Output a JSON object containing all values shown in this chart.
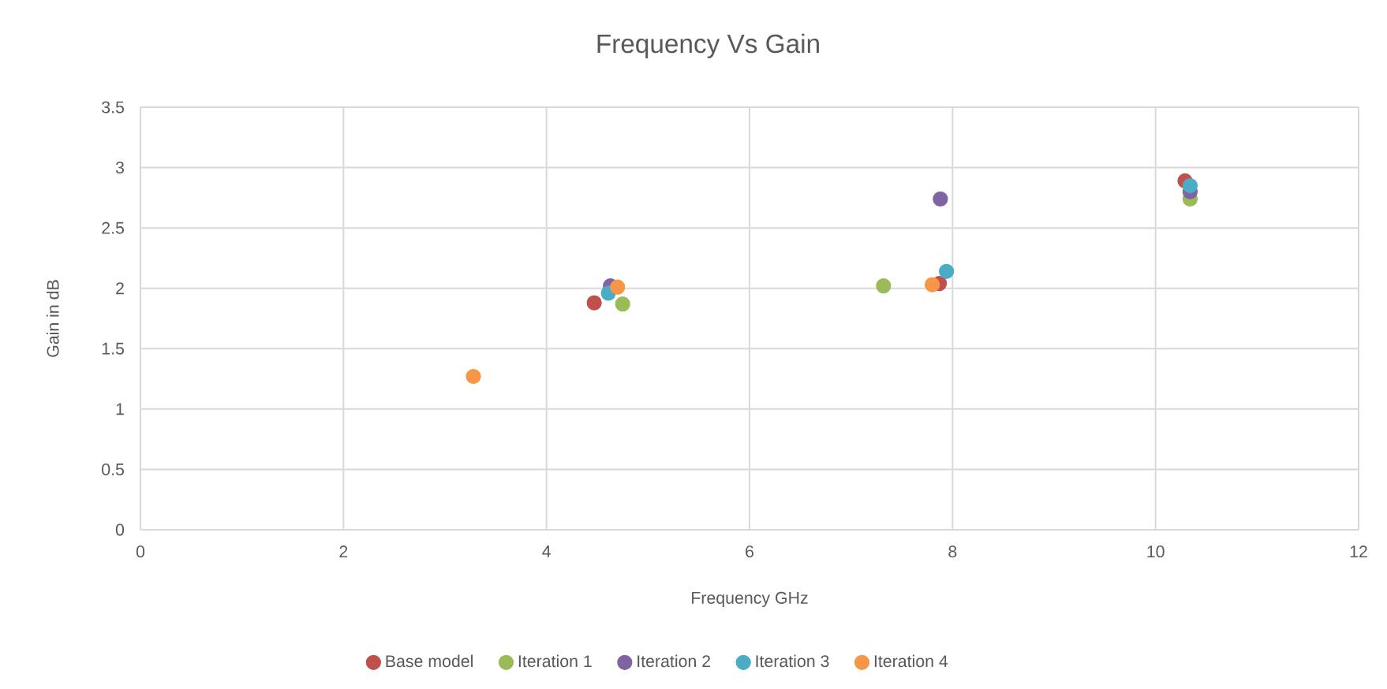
{
  "chart_data": {
    "type": "scatter",
    "title": "Frequency Vs Gain",
    "xlabel": "Frequency GHz",
    "ylabel": "Gain in dB",
    "series": [
      {
        "name": "Base model",
        "color": "#c0504d",
        "x": [
          4.47,
          7.87,
          10.29
        ],
        "values": [
          1.88,
          2.04,
          2.89
        ]
      },
      {
        "name": "Iteration 1",
        "color": "#9bbb59",
        "x": [
          4.75,
          7.32,
          10.34
        ],
        "values": [
          1.87,
          2.02,
          2.74
        ]
      },
      {
        "name": "Iteration 2",
        "color": "#8064a2",
        "x": [
          4.63,
          7.88,
          10.34
        ],
        "values": [
          2.02,
          2.74,
          2.8
        ]
      },
      {
        "name": "Iteration 3",
        "color": "#4bacc6",
        "x": [
          4.61,
          7.94,
          10.34
        ],
        "values": [
          1.96,
          2.14,
          2.85
        ]
      },
      {
        "name": "Iteration 4",
        "color": "#f79646",
        "x": [
          3.28,
          4.7,
          7.8
        ],
        "values": [
          1.27,
          2.01,
          2.03
        ]
      }
    ],
    "xlim": [
      0,
      12
    ],
    "ylim": [
      0,
      3.5
    ],
    "xticks": [
      0,
      2,
      4,
      6,
      8,
      10,
      12
    ],
    "yticks": [
      0,
      0.5,
      1,
      1.5,
      2,
      2.5,
      3,
      3.5
    ],
    "grid": true,
    "legend": "bottom",
    "marker": "circle"
  }
}
